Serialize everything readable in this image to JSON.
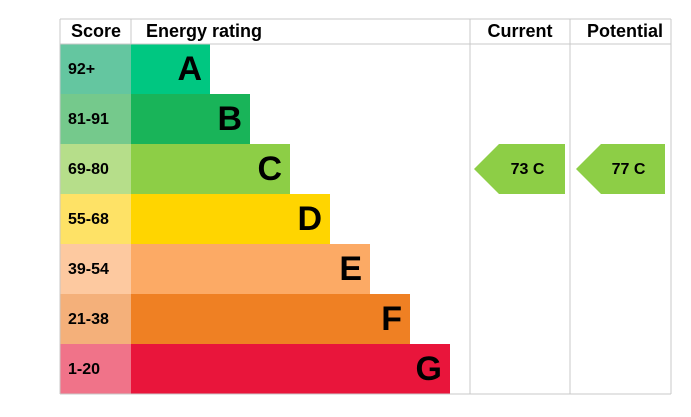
{
  "header": {
    "score": "Score",
    "rating": "Energy rating",
    "current": "Current",
    "potential": "Potential"
  },
  "bands": [
    {
      "score": "92+",
      "letter": "A",
      "color": "#00c781",
      "score_color": "#64c6a0"
    },
    {
      "score": "81-91",
      "letter": "B",
      "color": "#19b459",
      "score_color": "#75c98c"
    },
    {
      "score": "69-80",
      "letter": "C",
      "color": "#8dce46",
      "score_color": "#b6de8a"
    },
    {
      "score": "55-68",
      "letter": "D",
      "color": "#ffd500",
      "score_color": "#fee266"
    },
    {
      "score": "39-54",
      "letter": "E",
      "color": "#fcaa65",
      "score_color": "#fdc9a0"
    },
    {
      "score": "21-38",
      "letter": "F",
      "color": "#ef8023",
      "score_color": "#f4b07a"
    },
    {
      "score": "1-20",
      "letter": "G",
      "color": "#e9153b",
      "score_color": "#f07389"
    }
  ],
  "current": {
    "label": "73 C",
    "color": "#8dce46"
  },
  "potential": {
    "label": "77 C",
    "color": "#8dce46"
  }
}
